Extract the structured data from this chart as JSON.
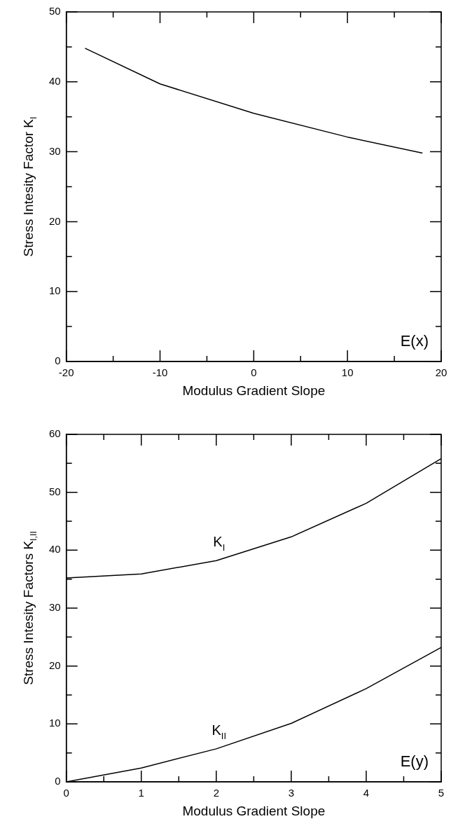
{
  "chart_data": [
    {
      "type": "line",
      "xlabel": "Modulus Gradient Slope",
      "ylabel": "Stress Intesity Factor K$_{I}$",
      "annotations": [
        "E(x)"
      ],
      "xlim": [
        -20,
        20
      ],
      "xticks": [
        -20,
        {
          "value": -15,
          "label": null
        },
        -10,
        {
          "value": -5,
          "label": null
        },
        0,
        {
          "value": 5,
          "label": null
        },
        10,
        {
          "value": 15,
          "label": null
        },
        20
      ],
      "ylim": [
        0,
        50
      ],
      "yticks": [
        0,
        {
          "value": 5,
          "label": null
        },
        10,
        {
          "value": 15,
          "label": null
        },
        20,
        {
          "value": 25,
          "label": null
        },
        30,
        {
          "value": 35,
          "label": null
        },
        40,
        {
          "value": 45,
          "label": null
        },
        50
      ],
      "x": [
        -18,
        -10,
        0,
        10,
        18
      ],
      "marker": "none",
      "line_style": "solid",
      "legend": false,
      "series": [
        {
          "color": "#000000",
          "values": [
            44.8,
            39.7,
            35.5,
            32.1,
            29.8
          ]
        }
      ]
    },
    {
      "type": "line",
      "xlabel": "Modulus Gradient Slope",
      "ylabel": "Stress Intesity Factors K$_{I,II}$",
      "annotations": [
        "E(y)"
      ],
      "xlim": [
        0,
        5
      ],
      "xticks": [
        0,
        {
          "value": 0.5,
          "label": null
        },
        1,
        {
          "value": 1.5,
          "label": null
        },
        2,
        {
          "value": 2.5,
          "label": null
        },
        3,
        {
          "value": 3.5,
          "label": null
        },
        4,
        {
          "value": 4.5,
          "label": null
        },
        5
      ],
      "ylim": [
        0,
        60
      ],
      "yticks": [
        0,
        {
          "value": 5,
          "label": null
        },
        10,
        {
          "value": 15,
          "label": null
        },
        20,
        {
          "value": 25,
          "label": null
        },
        30,
        {
          "value": 35,
          "label": null
        },
        40,
        {
          "value": 45,
          "label": null
        },
        50,
        {
          "value": 55,
          "label": null
        },
        60
      ],
      "x": [
        0,
        1,
        2,
        3,
        4,
        5
      ],
      "marker": "none",
      "line_style": "solid",
      "legend": false,
      "series": [
        {
          "name": "K$_{I}$",
          "color": "#000000",
          "values": [
            35.2,
            35.9,
            38.2,
            42.3,
            48.1,
            55.8
          ]
        },
        {
          "name": "K$_{II}$",
          "color": "#000000",
          "values": [
            0,
            2.4,
            5.7,
            10.1,
            16.1,
            23.2
          ]
        }
      ]
    }
  ]
}
